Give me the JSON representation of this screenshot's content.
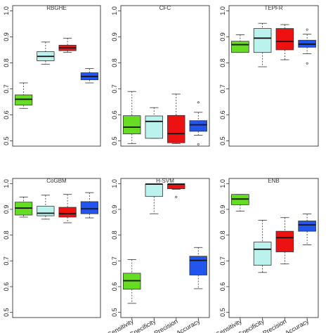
{
  "chart_data": [
    {
      "type": "box",
      "title": "RBGHE",
      "ylim": [
        0.5,
        1.0
      ],
      "yticks": [
        "0.5",
        "0.6",
        "0.7",
        "0.8",
        "0.9",
        "1.0"
      ],
      "categories": [],
      "boxes": [
        {
          "color": "#66dd22",
          "whisker_low": 0.625,
          "q1": 0.638,
          "median": 0.66,
          "q3": 0.677,
          "whisker_high": 0.723,
          "outliers": []
        },
        {
          "color": "#bbf2ee",
          "whisker_low": 0.795,
          "q1": 0.808,
          "median": 0.825,
          "q3": 0.843,
          "whisker_high": 0.88,
          "outliers": []
        },
        {
          "color": "#ee1111",
          "whisker_low": 0.84,
          "q1": 0.847,
          "median": 0.858,
          "q3": 0.868,
          "whisker_high": 0.895,
          "outliers": []
        },
        {
          "color": "#2255ee",
          "whisker_low": 0.723,
          "q1": 0.735,
          "median": 0.748,
          "q3": 0.762,
          "whisker_high": 0.778,
          "outliers": []
        }
      ]
    },
    {
      "type": "box",
      "title": "CFC",
      "ylim": [
        0.5,
        1.0
      ],
      "yticks": [
        "0.5",
        "0.6",
        "0.7",
        "0.8",
        "0.9",
        "1.0"
      ],
      "categories": [],
      "boxes": [
        {
          "color": "#66dd22",
          "whisker_low": 0.49,
          "q1": 0.527,
          "median": 0.553,
          "q3": 0.597,
          "whisker_high": 0.69,
          "outliers": []
        },
        {
          "color": "#bbf2ee",
          "whisker_low": 0.51,
          "q1": 0.51,
          "median": 0.575,
          "q3": 0.596,
          "whisker_high": 0.628,
          "outliers": []
        },
        {
          "color": "#ee1111",
          "whisker_low": 0.49,
          "q1": 0.493,
          "median": 0.528,
          "q3": 0.598,
          "whisker_high": 0.68,
          "outliers": []
        },
        {
          "color": "#2255ee",
          "whisker_low": 0.522,
          "q1": 0.537,
          "median": 0.562,
          "q3": 0.578,
          "whisker_high": 0.61,
          "outliers": [
            0.648,
            0.487
          ]
        }
      ]
    },
    {
      "type": "box",
      "title": "TEPFR",
      "ylim": [
        0.5,
        1.0
      ],
      "yticks": [
        "0.5",
        "0.6",
        "0.7",
        "0.8",
        "0.9",
        "1.0"
      ],
      "categories": [],
      "boxes": [
        {
          "color": "#66dd22",
          "whisker_low": 0.84,
          "q1": 0.84,
          "median": 0.87,
          "q3": 0.883,
          "whisker_high": 0.908,
          "outliers": []
        },
        {
          "color": "#bbf2ee",
          "whisker_low": 0.785,
          "q1": 0.84,
          "median": 0.895,
          "q3": 0.932,
          "whisker_high": 0.952,
          "outliers": []
        },
        {
          "color": "#ee1111",
          "whisker_low": 0.812,
          "q1": 0.85,
          "median": 0.882,
          "q3": 0.932,
          "whisker_high": 0.947,
          "outliers": []
        },
        {
          "color": "#2255ee",
          "whisker_low": 0.835,
          "q1": 0.86,
          "median": 0.872,
          "q3": 0.887,
          "whisker_high": 0.91,
          "outliers": [
            0.928,
            0.798
          ]
        }
      ]
    },
    {
      "type": "box",
      "title": "CoGBM",
      "ylim": [
        0.5,
        1.0
      ],
      "yticks": [
        "0.5",
        "0.6",
        "0.7",
        "0.8",
        "0.9",
        "1.0"
      ],
      "categories": [],
      "boxes": [
        {
          "color": "#66dd22",
          "whisker_low": 0.87,
          "q1": 0.878,
          "median": 0.905,
          "q3": 0.928,
          "whisker_high": 0.948,
          "outliers": []
        },
        {
          "color": "#bbf2ee",
          "whisker_low": 0.862,
          "q1": 0.875,
          "median": 0.885,
          "q3": 0.912,
          "whisker_high": 0.955,
          "outliers": []
        },
        {
          "color": "#ee1111",
          "whisker_low": 0.848,
          "q1": 0.87,
          "median": 0.883,
          "q3": 0.908,
          "whisker_high": 0.958,
          "outliers": []
        },
        {
          "color": "#2255ee",
          "whisker_low": 0.867,
          "q1": 0.883,
          "median": 0.902,
          "q3": 0.93,
          "whisker_high": 0.965,
          "outliers": []
        }
      ]
    },
    {
      "type": "box",
      "title": "H-SVM",
      "ylim": [
        0.5,
        1.0
      ],
      "yticks": [
        "0.5",
        "0.6",
        "0.7",
        "0.8",
        "0.9",
        "1.0"
      ],
      "categories": [
        "Sensitivity",
        "Specificity",
        "Precision",
        "Accuracy"
      ],
      "boxes": [
        {
          "color": "#66dd22",
          "whisker_low": 0.535,
          "q1": 0.59,
          "median": 0.623,
          "q3": 0.652,
          "whisker_high": 0.705,
          "outliers": []
        },
        {
          "color": "#bbf2ee",
          "whisker_low": 0.883,
          "q1": 0.95,
          "median": 0.998,
          "q3": 0.998,
          "whisker_high": 0.998,
          "outliers": []
        },
        {
          "color": "#ee1111",
          "whisker_low": 0.978,
          "q1": 0.98,
          "median": 0.998,
          "q3": 0.998,
          "whisker_high": 0.998,
          "outliers": [
            0.948
          ]
        },
        {
          "color": "#2255ee",
          "whisker_low": 0.592,
          "q1": 0.645,
          "median": 0.702,
          "q3": 0.718,
          "whisker_high": 0.752,
          "outliers": []
        }
      ]
    },
    {
      "type": "box",
      "title": "ENB",
      "ylim": [
        0.5,
        1.0
      ],
      "yticks": [
        "0.5",
        "0.6",
        "0.7",
        "0.8",
        "0.9",
        "1.0"
      ],
      "categories": [
        "Sensitivity",
        "Specificity",
        "Precision",
        "Accuracy"
      ],
      "boxes": [
        {
          "color": "#66dd22",
          "whisker_low": 0.893,
          "q1": 0.918,
          "median": 0.94,
          "q3": 0.958,
          "whisker_high": 0.958,
          "outliers": []
        },
        {
          "color": "#bbf2ee",
          "whisker_low": 0.655,
          "q1": 0.683,
          "median": 0.745,
          "q3": 0.773,
          "whisker_high": 0.858,
          "outliers": []
        },
        {
          "color": "#ee1111",
          "whisker_low": 0.688,
          "q1": 0.735,
          "median": 0.79,
          "q3": 0.815,
          "whisker_high": 0.868,
          "outliers": []
        },
        {
          "color": "#2255ee",
          "whisker_low": 0.762,
          "q1": 0.815,
          "median": 0.84,
          "q3": 0.855,
          "whisker_high": 0.882,
          "outliers": []
        }
      ]
    }
  ]
}
